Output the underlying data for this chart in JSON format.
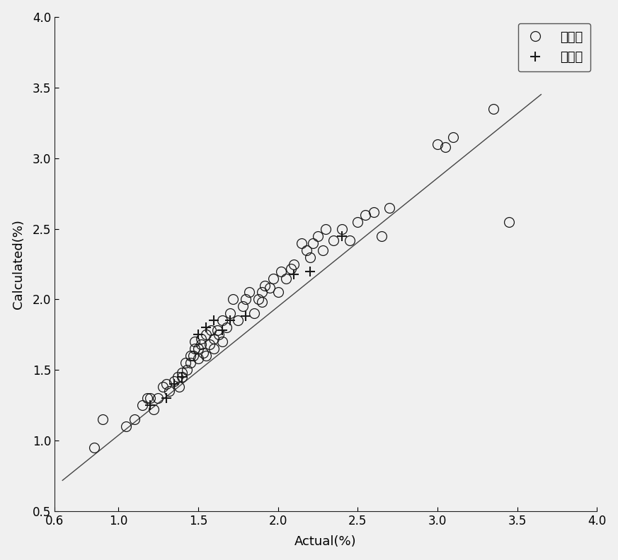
{
  "calibration_x": [
    0.85,
    0.9,
    1.05,
    1.1,
    1.15,
    1.18,
    1.2,
    1.22,
    1.25,
    1.28,
    1.3,
    1.32,
    1.35,
    1.37,
    1.38,
    1.4,
    1.4,
    1.42,
    1.43,
    1.45,
    1.45,
    1.47,
    1.48,
    1.48,
    1.5,
    1.5,
    1.52,
    1.52,
    1.53,
    1.55,
    1.55,
    1.57,
    1.58,
    1.6,
    1.6,
    1.62,
    1.63,
    1.65,
    1.65,
    1.68,
    1.7,
    1.72,
    1.75,
    1.78,
    1.8,
    1.82,
    1.85,
    1.88,
    1.9,
    1.9,
    1.92,
    1.95,
    1.97,
    2.0,
    2.02,
    2.05,
    2.08,
    2.1,
    2.15,
    2.18,
    2.2,
    2.22,
    2.25,
    2.28,
    2.3,
    2.35,
    2.4,
    2.45,
    2.5,
    2.55,
    2.6,
    2.65,
    2.7,
    3.0,
    3.05,
    3.1,
    3.35,
    3.45
  ],
  "calibration_y": [
    0.95,
    1.15,
    1.1,
    1.15,
    1.25,
    1.3,
    1.3,
    1.22,
    1.3,
    1.38,
    1.4,
    1.35,
    1.42,
    1.45,
    1.38,
    1.45,
    1.48,
    1.55,
    1.5,
    1.55,
    1.6,
    1.6,
    1.65,
    1.7,
    1.65,
    1.58,
    1.68,
    1.72,
    1.62,
    1.75,
    1.6,
    1.68,
    1.78,
    1.65,
    1.72,
    1.78,
    1.75,
    1.7,
    1.85,
    1.8,
    1.9,
    2.0,
    1.85,
    1.95,
    2.0,
    2.05,
    1.9,
    2.0,
    2.05,
    1.98,
    2.1,
    2.08,
    2.15,
    2.05,
    2.2,
    2.15,
    2.22,
    2.25,
    2.4,
    2.35,
    2.3,
    2.4,
    2.45,
    2.35,
    2.5,
    2.42,
    2.5,
    2.42,
    2.55,
    2.6,
    2.62,
    2.45,
    2.65,
    3.1,
    3.08,
    3.15,
    3.35,
    2.55
  ],
  "validation_x": [
    1.2,
    1.3,
    1.35,
    1.4,
    1.5,
    1.55,
    1.6,
    1.65,
    1.7,
    1.8,
    2.1,
    2.2,
    2.4
  ],
  "validation_y": [
    1.25,
    1.3,
    1.4,
    1.45,
    1.75,
    1.8,
    1.85,
    1.78,
    1.85,
    1.88,
    2.18,
    2.2,
    2.45
  ],
  "line_x": [
    0.65,
    3.65
  ],
  "line_y": [
    0.72,
    3.45
  ],
  "xlabel": "Actual(%)",
  "ylabel": "Calculated(%)",
  "xlim": [
    0.6,
    4.0
  ],
  "ylim": [
    0.5,
    4.0
  ],
  "xticks": [
    0.6,
    1.0,
    1.5,
    2.0,
    2.5,
    3.0,
    3.5,
    4.0
  ],
  "yticks": [
    0.5,
    1.0,
    1.5,
    2.0,
    2.5,
    3.0,
    3.5,
    4.0
  ],
  "legend_label_cal": "校正集",
  "legend_label_val": "验证集",
  "circle_color": "#1a1a1a",
  "line_color": "#444444",
  "bg_color": "#f0f0f0",
  "plot_bg_color": "#f0f0f0",
  "marker_size_circle": 10,
  "marker_size_plus": 10,
  "axis_label_fontsize": 13,
  "tick_fontsize": 12,
  "legend_fontsize": 13
}
